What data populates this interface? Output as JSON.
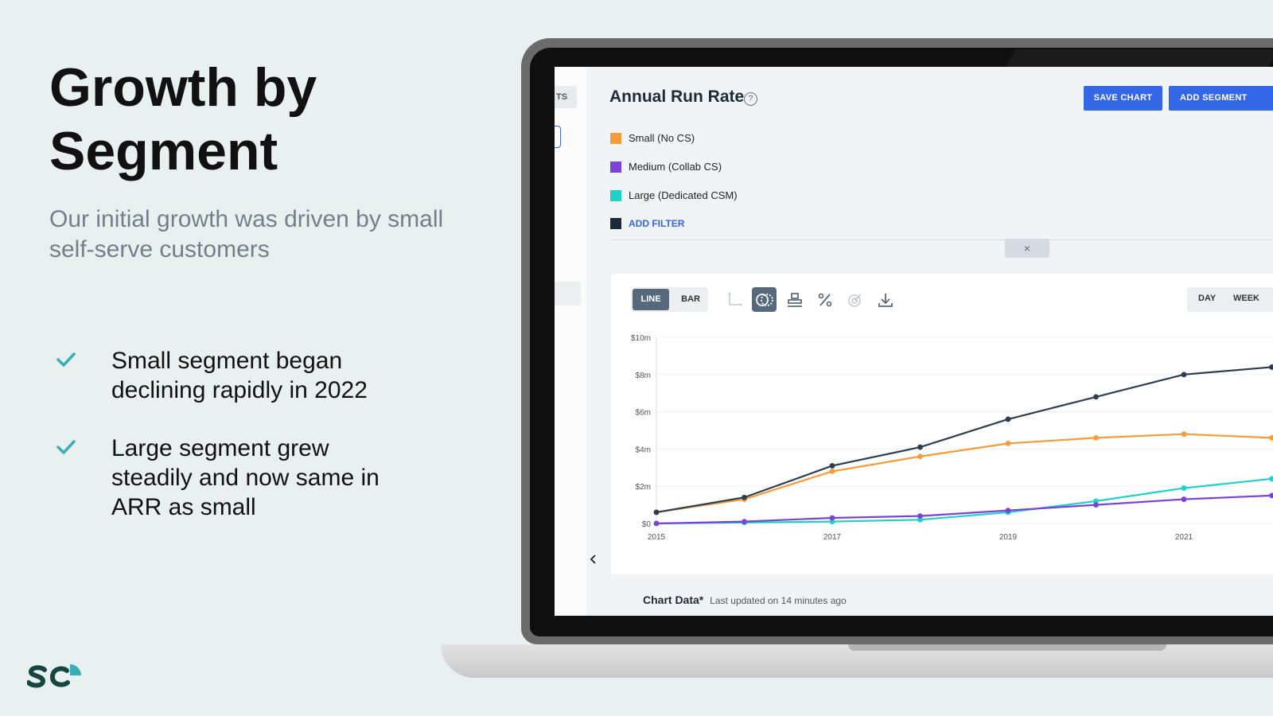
{
  "slide": {
    "title": "Growth by Segment",
    "subtitle": "Our initial growth was driven by small self-serve customers",
    "bullets": [
      "Small segment began declining rapidly in 2022",
      "Large segment grew steadily and now same in ARR as small"
    ]
  },
  "app": {
    "side_tab_label": "TS",
    "chart_title": "Annual Run Rate",
    "help_icon": "question-circle-icon",
    "save_chart_label": "SAVE CHART",
    "add_segment_label": "ADD SEGMENT",
    "legend": [
      {
        "label": "Small (No CS)",
        "color": "#f89c3b"
      },
      {
        "label": "Medium (Collab CS)",
        "color": "#7a42d8"
      },
      {
        "label": "Large (Dedicated CSM)",
        "color": "#1fd1c8"
      }
    ],
    "add_filter_label": "ADD FILTER",
    "close_glyph": "×",
    "chart_type_line": "LINE",
    "chart_type_bar": "BAR",
    "period_day": "DAY",
    "period_week": "WEEK",
    "footer_title": "Chart Data*",
    "footer_sub": "Last updated on 14 minutes ago"
  },
  "chart_data": {
    "type": "line",
    "title": "Annual Run Rate",
    "x": [
      2015,
      2016,
      2017,
      2018,
      2019,
      2020,
      2021,
      2022
    ],
    "xticks": [
      "2015",
      "2017",
      "2019",
      "2021"
    ],
    "ylim": [
      0,
      10
    ],
    "yticks": [
      "$0",
      "$2m",
      "$4m",
      "$6m",
      "$8m",
      "$10m"
    ],
    "series": [
      {
        "name": "",
        "color": "#2c3e50",
        "values": [
          0.6,
          1.4,
          3.1,
          4.1,
          5.6,
          6.8,
          8.0,
          8.4
        ]
      },
      {
        "name": "Small (No CS)",
        "color": "#f89c3b",
        "values": [
          0.6,
          1.3,
          2.8,
          3.6,
          4.3,
          4.6,
          4.8,
          4.6
        ]
      },
      {
        "name": "Medium (Collab CS)",
        "color": "#7a42d8",
        "values": [
          0.0,
          0.1,
          0.3,
          0.4,
          0.7,
          1.0,
          1.3,
          1.5
        ]
      },
      {
        "name": "Large (Dedicated CSM)",
        "color": "#1fd1c8",
        "values": [
          0.0,
          0.05,
          0.1,
          0.2,
          0.6,
          1.2,
          1.9,
          2.4
        ]
      }
    ],
    "grid": true
  }
}
